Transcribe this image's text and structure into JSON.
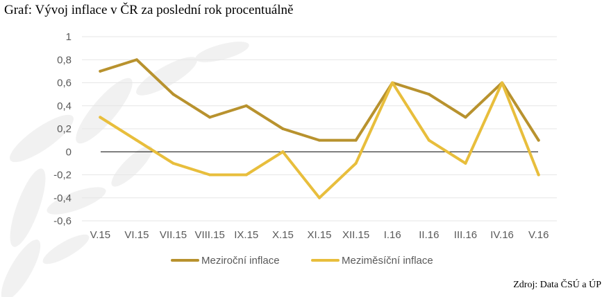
{
  "header": {
    "title": "Graf: Vývoj inflace v ČR za poslední rok procentuálně"
  },
  "footer": {
    "source": "Zdroj: Data ČSÚ a ÚP"
  },
  "colors": {
    "series1": "#B8922E",
    "series2": "#E8BE3C",
    "zero_line": "#000000",
    "grid": "#E6E6E6",
    "watermark": "#F1F1F1"
  },
  "chart_data": {
    "type": "line",
    "title": "Graf: Vývoj inflace v ČR za poslední rok procentuálně",
    "xlabel": "",
    "ylabel": "",
    "categories": [
      "V.15",
      "VI.15",
      "VII.15",
      "VIII.15",
      "IX.15",
      "X.15",
      "XI.15",
      "XII.15",
      "I.16",
      "II.16",
      "III.16",
      "IV.16",
      "V.16"
    ],
    "series": [
      {
        "name": "Meziroční inflace",
        "values": [
          0.7,
          0.8,
          0.5,
          0.3,
          0.4,
          0.2,
          0.1,
          0.1,
          0.6,
          0.5,
          0.3,
          0.6,
          0.1
        ]
      },
      {
        "name": "Meziměsíční inflace",
        "values": [
          0.3,
          0.1,
          -0.1,
          -0.2,
          -0.2,
          0.0,
          -0.4,
          -0.1,
          0.6,
          0.1,
          -0.1,
          0.6,
          -0.2
        ]
      }
    ],
    "ylim": [
      -0.6,
      1
    ],
    "yticks": [
      -0.6,
      -0.4,
      -0.2,
      0,
      0.2,
      0.4,
      0.6,
      0.8,
      1
    ],
    "ytick_labels": [
      "-0,6",
      "-0,4",
      "-0,2",
      "0",
      "0,2",
      "0,4",
      "0,6",
      "0,8",
      "1"
    ],
    "grid": true,
    "legend": "bottom"
  }
}
